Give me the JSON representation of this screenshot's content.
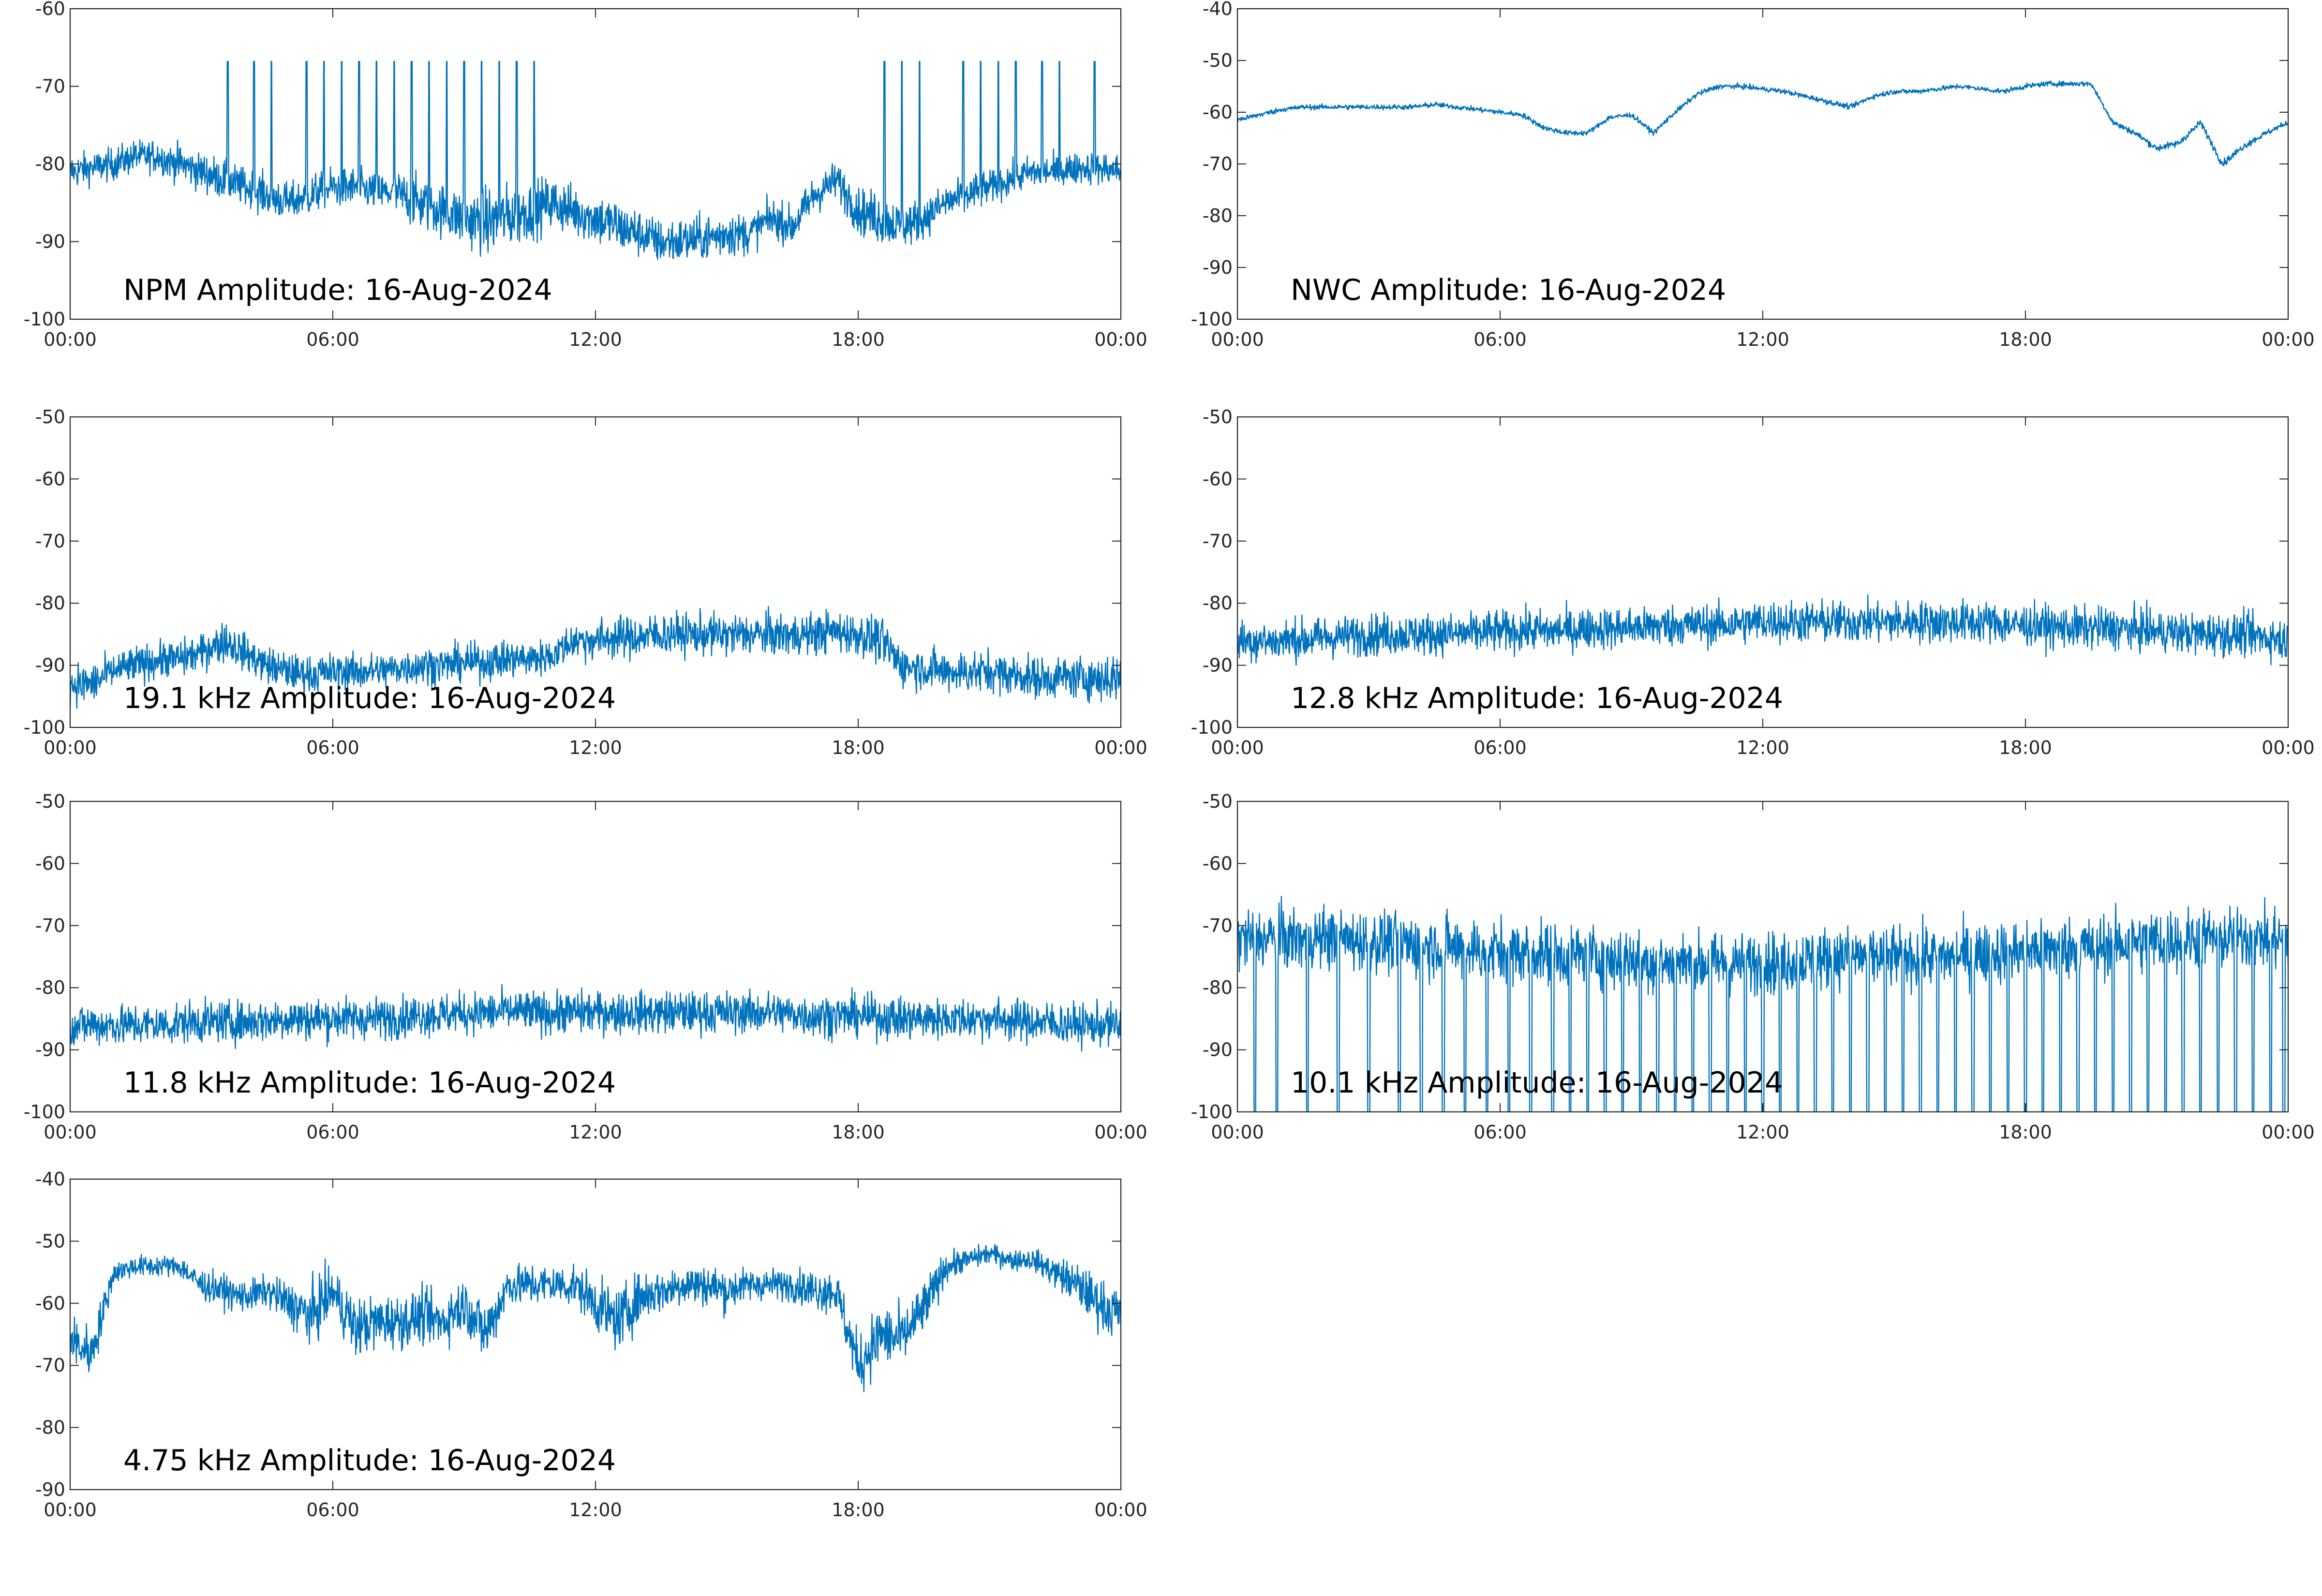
{
  "colors": {
    "trace": "#0072BD",
    "axes": "#262626",
    "background": "#ffffff"
  },
  "chart_data": [
    {
      "type": "line",
      "title": "NPM Amplitude: 16-Aug-2024",
      "xlabel": "",
      "ylabel": "",
      "xlim": [
        "00:00",
        "24:00"
      ],
      "xticks": [
        "00:00",
        "06:00",
        "12:00",
        "18:00",
        "00:00"
      ],
      "ylim": [
        -100,
        -60
      ],
      "yticks": [
        -100,
        -90,
        -80,
        -70,
        -60
      ],
      "grid": false,
      "series": [
        {
          "x": [
            0,
            0.5,
            1,
            1.5,
            2,
            2.5,
            3,
            3.5,
            4,
            4.5,
            5,
            5.5,
            6,
            6.5,
            7,
            7.5,
            8,
            8.5,
            9,
            9.5,
            10,
            10.5,
            11,
            11.5,
            12,
            12.5,
            13,
            13.5,
            14,
            14.5,
            15,
            15.5,
            16,
            16.5,
            17,
            17.5,
            18,
            18.5,
            19,
            19.5,
            20,
            20.5,
            21,
            21.5,
            22,
            22.5,
            23,
            23.5,
            24
          ],
          "values": [
            -81,
            -80.5,
            -80,
            -79,
            -79,
            -80,
            -81,
            -82,
            -83,
            -84,
            -85,
            -84,
            -83,
            -83,
            -83.5,
            -84,
            -85,
            -86,
            -87,
            -87.5,
            -87,
            -86,
            -85,
            -86,
            -87,
            -88,
            -89,
            -90,
            -90,
            -89.5,
            -89,
            -89,
            -87,
            -88,
            -84,
            -82,
            -86,
            -87,
            -88,
            -87,
            -85,
            -84,
            -83,
            -82,
            -81,
            -81,
            -80.5,
            -80.5,
            -81
          ],
          "noise": [
            2.5,
            2.5,
            2.5,
            2.5,
            2.5,
            3,
            3,
            3,
            3,
            3,
            3,
            3,
            3,
            3,
            3,
            3.5,
            4,
            4,
            4.5,
            5,
            5,
            4.5,
            4,
            4,
            4,
            4,
            3.5,
            3.5,
            3.5,
            3.5,
            3.5,
            3,
            3,
            3,
            3,
            3,
            3.5,
            4,
            3.5,
            3,
            3,
            3,
            2.5,
            2.5,
            2.5,
            2.5,
            2.5,
            2.5,
            2.5
          ],
          "spikes": [
            3.6,
            4.2,
            4.6,
            5.4,
            5.8,
            6.2,
            6.6,
            7.0,
            7.4,
            7.8,
            8.2,
            8.6,
            9.0,
            9.4,
            9.8,
            10.2,
            10.6,
            18.6,
            19.0,
            19.4,
            20.4,
            20.8,
            21.2,
            21.6,
            22.2,
            22.6,
            23.4
          ]
        }
      ]
    },
    {
      "type": "line",
      "title": "NWC Amplitude: 16-Aug-2024",
      "xlabel": "",
      "ylabel": "",
      "xlim": [
        "00:00",
        "24:00"
      ],
      "xticks": [
        "00:00",
        "06:00",
        "12:00",
        "18:00",
        "00:00"
      ],
      "ylim": [
        -100,
        -40
      ],
      "yticks": [
        -100,
        -90,
        -80,
        -70,
        -60,
        -50,
        -40
      ],
      "grid": false,
      "series": [
        {
          "x": [
            0,
            0.5,
            1,
            1.5,
            2,
            2.5,
            3,
            3.5,
            4,
            4.5,
            5,
            5.5,
            6,
            6.5,
            7,
            7.5,
            8,
            8.5,
            9,
            9.5,
            10,
            10.5,
            11,
            11.5,
            12,
            12.5,
            13,
            13.5,
            14,
            14.5,
            15,
            15.5,
            16,
            16.5,
            17,
            17.5,
            18,
            18.5,
            19,
            19.5,
            20,
            20.5,
            21,
            21.5,
            22,
            22.5,
            23,
            23.5,
            24
          ],
          "values": [
            -61.5,
            -60.5,
            -59.5,
            -59,
            -59,
            -59,
            -59,
            -59,
            -59,
            -58.5,
            -59,
            -59.5,
            -60,
            -60.5,
            -63,
            -64,
            -64,
            -61,
            -60.5,
            -64,
            -60,
            -56.5,
            -55,
            -55,
            -55.5,
            -56,
            -57,
            -58,
            -59,
            -57,
            -56,
            -56,
            -55.5,
            -55,
            -55.5,
            -56,
            -55,
            -54.5,
            -54.5,
            -54.5,
            -62,
            -64,
            -67,
            -66,
            -62,
            -70,
            -66.5,
            -64,
            -62
          ],
          "noise": [
            0.6,
            0.6,
            0.6,
            0.6,
            0.6,
            0.6,
            0.6,
            0.6,
            0.6,
            0.6,
            0.6,
            0.6,
            0.6,
            0.6,
            0.6,
            0.6,
            0.6,
            0.6,
            0.6,
            0.6,
            0.6,
            0.6,
            0.6,
            0.6,
            0.6,
            0.6,
            0.6,
            0.6,
            0.6,
            0.6,
            0.6,
            0.6,
            0.6,
            0.6,
            0.6,
            0.6,
            0.6,
            0.6,
            0.6,
            0.6,
            0.7,
            0.7,
            0.8,
            0.8,
            0.8,
            0.9,
            0.8,
            0.7,
            0.6
          ],
          "spikes": []
        }
      ]
    },
    {
      "type": "line",
      "title": "19.1 kHz Amplitude: 16-Aug-2024",
      "xlabel": "",
      "ylabel": "",
      "xlim": [
        "00:00",
        "24:00"
      ],
      "xticks": [
        "00:00",
        "06:00",
        "12:00",
        "18:00",
        "00:00"
      ],
      "ylim": [
        -100,
        -50
      ],
      "yticks": [
        -100,
        -90,
        -80,
        -70,
        -60,
        -50
      ],
      "grid": false,
      "series": [
        {
          "x": [
            0,
            0.5,
            1,
            1.5,
            2,
            2.5,
            3,
            3.5,
            4,
            4.5,
            5,
            5.5,
            6,
            6.5,
            7,
            7.5,
            8,
            8.5,
            9,
            9.5,
            10,
            10.5,
            11,
            11.5,
            12,
            12.5,
            13,
            13.5,
            14,
            14.5,
            15,
            15.5,
            16,
            16.5,
            17,
            17.5,
            18,
            18.5,
            19,
            19.5,
            20,
            20.5,
            21,
            21.5,
            22,
            22.5,
            23,
            23.5,
            24
          ],
          "values": [
            -93,
            -93,
            -91,
            -90,
            -89,
            -89,
            -88,
            -86,
            -88,
            -90,
            -91,
            -91.5,
            -91,
            -91,
            -91,
            -90.5,
            -90,
            -90,
            -89.5,
            -89.5,
            -89,
            -89,
            -88.5,
            -86,
            -86,
            -85.5,
            -85.5,
            -85,
            -85,
            -85,
            -85,
            -85,
            -85,
            -85,
            -85,
            -84.5,
            -85,
            -86,
            -90,
            -90.5,
            -91,
            -91,
            -91,
            -91.5,
            -92,
            -92,
            -92,
            -92,
            -92
          ],
          "noise": [
            4,
            4,
            3.5,
            3.5,
            3.5,
            3.5,
            3.5,
            4,
            3.5,
            3.5,
            3.5,
            3.5,
            3.5,
            3.5,
            3.5,
            3.5,
            3.5,
            3.5,
            3.5,
            3.5,
            3.5,
            3.5,
            3.5,
            3.5,
            4,
            4,
            4,
            4,
            4,
            4,
            4,
            4,
            4,
            4,
            4,
            4,
            4,
            4.5,
            4,
            4,
            4,
            4,
            4,
            4,
            4,
            4,
            4,
            4.5,
            5
          ],
          "spikes": []
        }
      ]
    },
    {
      "type": "line",
      "title": "12.8 kHz Amplitude: 16-Aug-2024",
      "xlabel": "",
      "ylabel": "",
      "xlim": [
        "00:00",
        "24:00"
      ],
      "xticks": [
        "00:00",
        "06:00",
        "12:00",
        "18:00",
        "00:00"
      ],
      "ylim": [
        -100,
        -50
      ],
      "yticks": [
        -100,
        -90,
        -80,
        -70,
        -60,
        -50
      ],
      "grid": false,
      "series": [
        {
          "x": [
            0,
            1,
            2,
            3,
            4,
            5,
            6,
            7,
            8,
            9,
            10,
            11,
            12,
            13,
            14,
            15,
            16,
            17,
            18,
            19,
            20,
            21,
            22,
            23,
            24
          ],
          "values": [
            -86,
            -86,
            -85.5,
            -85,
            -85,
            -85,
            -84.5,
            -84.5,
            -84,
            -84,
            -83.5,
            -83.5,
            -83,
            -83,
            -83,
            -83,
            -83,
            -83,
            -83.5,
            -84,
            -84,
            -84.5,
            -85,
            -85,
            -86
          ],
          "noise": [
            4,
            4,
            4,
            4,
            4,
            4,
            4,
            4,
            4,
            4,
            4,
            4,
            4,
            4,
            4,
            4,
            4,
            4,
            4,
            4,
            4,
            4,
            4,
            4,
            4
          ],
          "spikes": []
        }
      ]
    },
    {
      "type": "line",
      "title": "11.8 kHz Amplitude: 16-Aug-2024",
      "xlabel": "",
      "ylabel": "",
      "xlim": [
        "00:00",
        "24:00"
      ],
      "xticks": [
        "00:00",
        "06:00",
        "12:00",
        "18:00",
        "00:00"
      ],
      "ylim": [
        -100,
        -50
      ],
      "yticks": [
        -100,
        -90,
        -80,
        -70,
        -60,
        -50
      ],
      "grid": false,
      "series": [
        {
          "x": [
            0,
            1,
            2,
            3,
            4,
            5,
            6,
            7,
            8,
            9,
            10,
            11,
            12,
            13,
            14,
            15,
            16,
            17,
            18,
            19,
            20,
            21,
            22,
            23,
            24
          ],
          "values": [
            -86,
            -86,
            -86,
            -85.5,
            -85.5,
            -85,
            -85,
            -85,
            -84.5,
            -84,
            -84,
            -84,
            -84,
            -84,
            -84,
            -84,
            -84,
            -84.5,
            -84.5,
            -85,
            -85,
            -85,
            -85.5,
            -86,
            -86
          ],
          "noise": [
            4,
            4,
            4,
            4,
            4,
            4,
            4,
            4,
            4,
            4,
            4,
            4,
            4,
            4,
            4,
            4,
            4,
            4,
            4,
            4,
            4,
            4,
            4,
            4,
            4
          ],
          "spikes": []
        }
      ]
    },
    {
      "type": "line",
      "title": "10.1 kHz Amplitude: 16-Aug-2024",
      "xlabel": "",
      "ylabel": "",
      "xlim": [
        "00:00",
        "24:00"
      ],
      "xticks": [
        "00:00",
        "06:00",
        "12:00",
        "18:00",
        "00:00"
      ],
      "ylim": [
        -100,
        -50
      ],
      "yticks": [
        -100,
        -90,
        -80,
        -70,
        -60,
        -50
      ],
      "grid": false,
      "series": [
        {
          "x": [
            0,
            2,
            4,
            6,
            8,
            10,
            12,
            14,
            16,
            18,
            20,
            22,
            24
          ],
          "values": [
            -72,
            -72,
            -73,
            -74,
            -75,
            -76,
            -76,
            -75,
            -75,
            -74,
            -73,
            -72,
            -72
          ],
          "noise": [
            6,
            6,
            6,
            6,
            6,
            6,
            6,
            6,
            6,
            6,
            6,
            6,
            6
          ],
          "dropouts": [
            0.4,
            0.9,
            1.6,
            2.3,
            3.0,
            3.7,
            4.2,
            4.7,
            5.2,
            5.7,
            6.2,
            6.7,
            7.2,
            7.6,
            8.0,
            8.4,
            8.8,
            9.2,
            9.6,
            10.0,
            10.4,
            10.8,
            11.2,
            11.6,
            12.0,
            12.4,
            12.8,
            13.2,
            13.6,
            14.0,
            14.4,
            14.8,
            15.2,
            15.6,
            16.0,
            16.4,
            16.8,
            17.2,
            17.6,
            18.0,
            18.4,
            18.8,
            19.2,
            19.6,
            20.0,
            20.4,
            20.8,
            21.2,
            21.6,
            22.0,
            22.4,
            22.8,
            23.2,
            23.6,
            23.9
          ],
          "spikes": []
        }
      ]
    },
    {
      "type": "line",
      "title": "4.75 kHz Amplitude: 16-Aug-2024",
      "xlabel": "",
      "ylabel": "",
      "xlim": [
        "00:00",
        "24:00"
      ],
      "xticks": [
        "00:00",
        "06:00",
        "12:00",
        "18:00",
        "00:00"
      ],
      "ylim": [
        -90,
        -40
      ],
      "yticks": [
        -90,
        -80,
        -70,
        -60,
        -50,
        -40
      ],
      "grid": false,
      "series": [
        {
          "x": [
            0,
            0.5,
            1,
            1.5,
            2,
            2.5,
            3,
            3.5,
            4,
            4.5,
            5,
            5.5,
            6,
            6.5,
            7,
            7.5,
            8,
            8.5,
            9,
            9.5,
            10,
            10.5,
            11,
            11.5,
            12,
            12.5,
            13,
            13.5,
            14,
            14.5,
            15,
            15.5,
            16,
            16.5,
            17,
            17.5,
            18,
            18.5,
            19,
            19.5,
            20,
            20.5,
            21,
            21.5,
            22,
            22.5,
            23,
            23.5,
            24
          ],
          "values": [
            -66,
            -68,
            -55,
            -54,
            -54,
            -54,
            -57,
            -58,
            -59,
            -58,
            -60,
            -62,
            -58,
            -64,
            -63,
            -63,
            -62,
            -63,
            -60,
            -65,
            -57,
            -57,
            -57,
            -57,
            -60,
            -63,
            -59,
            -58,
            -57,
            -57,
            -58,
            -57,
            -57,
            -57,
            -58,
            -58,
            -70,
            -65,
            -66,
            -61,
            -54,
            -53,
            -52,
            -53,
            -53,
            -55,
            -57,
            -60,
            -62
          ],
          "noise": [
            5,
            5,
            2,
            2,
            2,
            2,
            3,
            3,
            3,
            3,
            4,
            6,
            5,
            6,
            5,
            5,
            5,
            5,
            5,
            6,
            4,
            4,
            4,
            4,
            5,
            6,
            5,
            4,
            4,
            4,
            4,
            3,
            3,
            3,
            4,
            4,
            6,
            6,
            6,
            5,
            3,
            2,
            2,
            2,
            2,
            3,
            4,
            5,
            5
          ],
          "spikes": []
        }
      ]
    }
  ]
}
